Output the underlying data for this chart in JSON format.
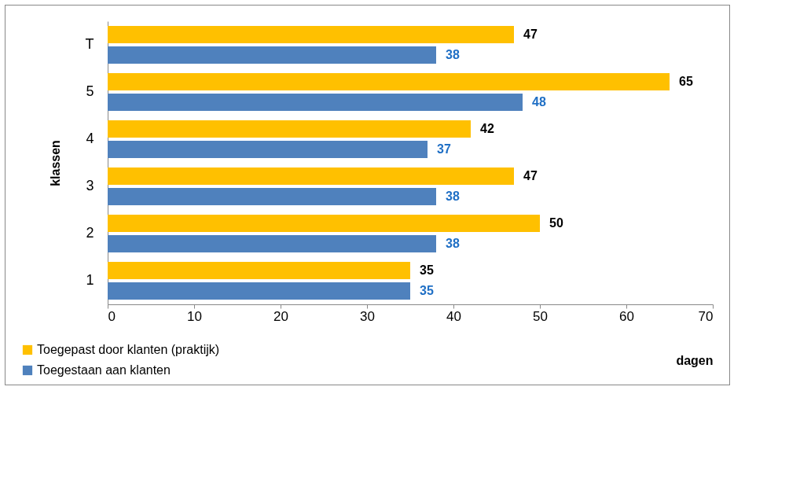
{
  "chart_data": {
    "type": "bar",
    "orientation": "horizontal",
    "xlabel": "dagen",
    "ylabel": "klassen",
    "categories": [
      "T",
      "5",
      "4",
      "3",
      "2",
      "1"
    ],
    "series": [
      {
        "name": "Toegepast door klanten (praktijk)",
        "color": "#ffc000",
        "values": [
          47,
          65,
          42,
          47,
          50,
          35
        ]
      },
      {
        "name": "Toegestaan aan klanten",
        "color": "#4f81bd",
        "values": [
          38,
          48,
          37,
          38,
          38,
          35
        ]
      }
    ],
    "xlim": [
      0,
      70
    ],
    "xticks": [
      0,
      10,
      20,
      30,
      40,
      50,
      60,
      70
    ],
    "grid": false,
    "legend": "bottom left",
    "data_labels": true
  }
}
